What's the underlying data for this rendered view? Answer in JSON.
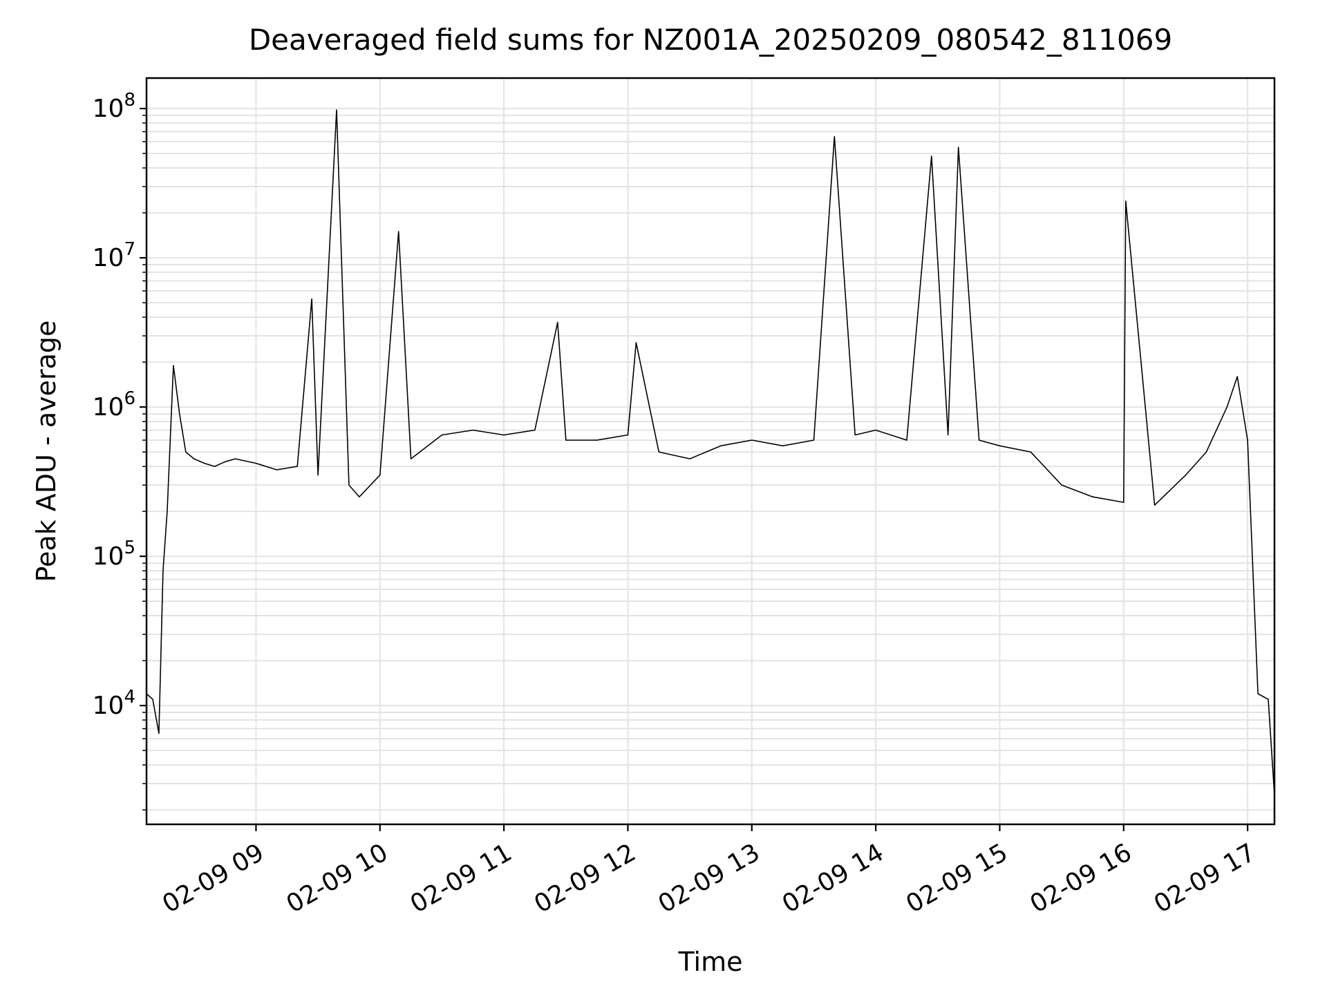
{
  "chart_data": {
    "type": "line",
    "title": "Deaveraged field sums for NZ001A_20250209_080542_811069",
    "xlabel": "Time",
    "ylabel": "Peak ADU - average",
    "yscale": "log",
    "xlim": [
      "2025-02-09 08:07",
      "2025-02-09 17:13"
    ],
    "ylim": [
      1600,
      160000000
    ],
    "grid": true,
    "line_color": "#000000",
    "grid_color": "#e3e3e3",
    "xticks": [
      {
        "value": "2025-02-09 09:00",
        "label": "02-09 09"
      },
      {
        "value": "2025-02-09 10:00",
        "label": "02-09 10"
      },
      {
        "value": "2025-02-09 11:00",
        "label": "02-09 11"
      },
      {
        "value": "2025-02-09 12:00",
        "label": "02-09 12"
      },
      {
        "value": "2025-02-09 13:00",
        "label": "02-09 13"
      },
      {
        "value": "2025-02-09 14:00",
        "label": "02-09 14"
      },
      {
        "value": "2025-02-09 15:00",
        "label": "02-09 15"
      },
      {
        "value": "2025-02-09 16:00",
        "label": "02-09 16"
      },
      {
        "value": "2025-02-09 17:00",
        "label": "02-09 17"
      }
    ],
    "yticks": [
      {
        "value": 10000,
        "base": "10",
        "exp": "4"
      },
      {
        "value": 100000,
        "base": "10",
        "exp": "5"
      },
      {
        "value": 1000000,
        "base": "10",
        "exp": "6"
      },
      {
        "value": 10000000,
        "base": "10",
        "exp": "7"
      },
      {
        "value": 100000000,
        "base": "10",
        "exp": "8"
      }
    ],
    "series": [
      {
        "x": [
          "2025-02-09 08:07",
          "2025-02-09 08:10",
          "2025-02-09 08:13",
          "2025-02-09 08:15",
          "2025-02-09 08:17",
          "2025-02-09 08:20",
          "2025-02-09 08:23",
          "2025-02-09 08:26",
          "2025-02-09 08:30",
          "2025-02-09 08:35",
          "2025-02-09 08:40",
          "2025-02-09 08:45",
          "2025-02-09 08:50",
          "2025-02-09 09:00",
          "2025-02-09 09:10",
          "2025-02-09 09:20",
          "2025-02-09 09:27",
          "2025-02-09 09:30",
          "2025-02-09 09:39",
          "2025-02-09 09:45",
          "2025-02-09 09:50",
          "2025-02-09 10:00",
          "2025-02-09 10:09",
          "2025-02-09 10:15",
          "2025-02-09 10:30",
          "2025-02-09 10:45",
          "2025-02-09 11:00",
          "2025-02-09 11:15",
          "2025-02-09 11:26",
          "2025-02-09 11:30",
          "2025-02-09 11:45",
          "2025-02-09 12:00",
          "2025-02-09 12:04",
          "2025-02-09 12:15",
          "2025-02-09 12:30",
          "2025-02-09 12:45",
          "2025-02-09 13:00",
          "2025-02-09 13:15",
          "2025-02-09 13:30",
          "2025-02-09 13:40",
          "2025-02-09 13:50",
          "2025-02-09 14:00",
          "2025-02-09 14:15",
          "2025-02-09 14:27",
          "2025-02-09 14:35",
          "2025-02-09 14:40",
          "2025-02-09 14:50",
          "2025-02-09 15:00",
          "2025-02-09 15:15",
          "2025-02-09 15:30",
          "2025-02-09 15:45",
          "2025-02-09 16:00",
          "2025-02-09 16:01",
          "2025-02-09 16:15",
          "2025-02-09 16:30",
          "2025-02-09 16:40",
          "2025-02-09 16:50",
          "2025-02-09 16:55",
          "2025-02-09 17:00",
          "2025-02-09 17:05",
          "2025-02-09 17:10",
          "2025-02-09 17:13"
        ],
        "y": [
          12000,
          11000,
          6500,
          80000,
          200000,
          1900000,
          900000,
          500000,
          450000,
          420000,
          400000,
          430000,
          450000,
          420000,
          380000,
          400000,
          5300000,
          350000,
          98000000,
          300000,
          250000,
          350000,
          15000000,
          450000,
          650000,
          700000,
          650000,
          700000,
          3700000,
          600000,
          600000,
          650000,
          2700000,
          500000,
          450000,
          550000,
          600000,
          550000,
          600000,
          65000000,
          650000,
          700000,
          600000,
          48000000,
          650000,
          55000000,
          600000,
          550000,
          500000,
          300000,
          250000,
          230000,
          24000000,
          220000,
          350000,
          500000,
          1000000,
          1600000,
          600000,
          12000,
          11000,
          2500
        ]
      }
    ]
  }
}
